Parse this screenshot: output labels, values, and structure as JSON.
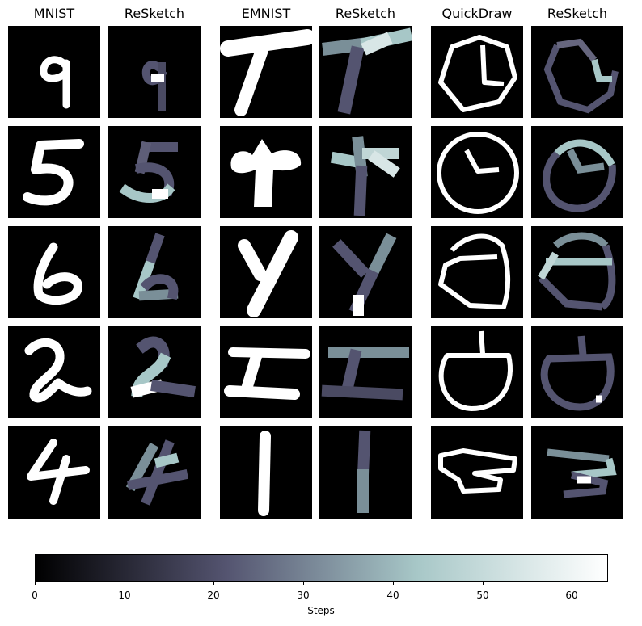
{
  "columns": [
    {
      "title": "MNIST"
    },
    {
      "title": "ReSketch"
    },
    {
      "title": "EMNIST"
    },
    {
      "title": "ReSketch"
    },
    {
      "title": "QuickDraw"
    },
    {
      "title": "ReSketch"
    }
  ],
  "colorbar": {
    "label": "Steps",
    "min": 0,
    "max": 64,
    "ticks": [
      "0",
      "10",
      "20",
      "30",
      "40",
      "50",
      "60"
    ],
    "colormap": "bone",
    "colors": [
      "#000000",
      "#545470",
      "#a7c7c7",
      "#ffffff"
    ]
  }
}
